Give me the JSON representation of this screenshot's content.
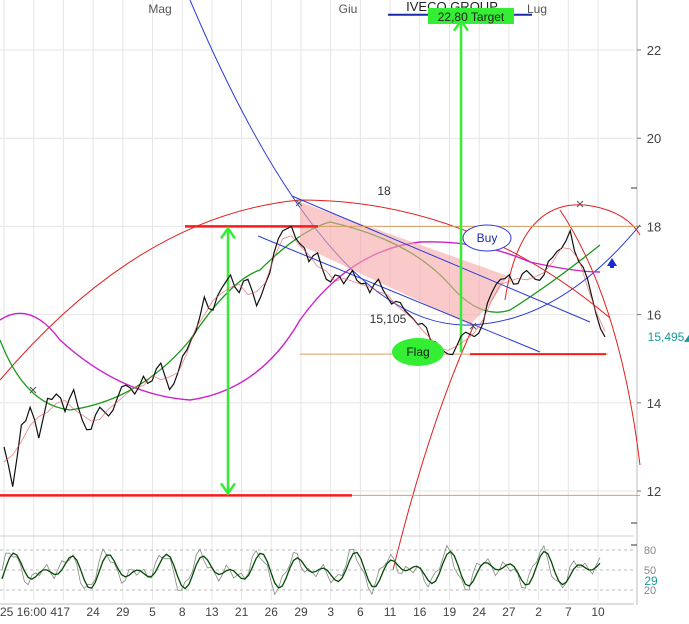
{
  "chart_data": {
    "type": "line",
    "title": "IVECO GROUP",
    "month_labels": [
      "Mag",
      "Giu",
      "Lug"
    ],
    "x_tick_labels": [
      "25 16:00",
      "4",
      "17",
      "24",
      "29",
      "5",
      "8",
      "13",
      "21",
      "26",
      "29",
      "3",
      "6",
      "11",
      "16",
      "19",
      "24",
      "27",
      "2",
      "7",
      "10"
    ],
    "y_tick_labels": [
      "22",
      "20",
      "18",
      "16",
      "14",
      "12"
    ],
    "ylim": [
      11.2,
      23.6
    ],
    "oscillator_tick_labels": [
      "80",
      "50",
      "20"
    ],
    "oscillator_last_value": "29",
    "last_price": "15,495",
    "annotations": {
      "target": "22,80 Target",
      "resistance": "18",
      "support": "15,105",
      "pattern": "Flag",
      "signal": "Buy"
    },
    "levels": {
      "target_price": 22.8,
      "resistance_price": 18.0,
      "flag_low": 15.105,
      "base_low": 11.9
    },
    "series": [
      {
        "values": [
          13.0,
          12.1,
          13.5,
          13.9,
          13.2,
          14.1,
          14.2,
          13.8,
          14.3,
          13.6,
          13.4,
          13.9,
          13.7,
          14.1,
          14.4,
          14.2,
          14.6,
          14.5,
          14.9,
          14.3,
          14.7,
          15.2,
          15.6,
          16.4,
          16.1,
          16.6,
          16.9,
          16.5,
          16.8,
          16.2,
          16.7,
          17.4,
          17.9,
          18.0,
          17.6,
          17.2,
          17.4,
          16.8,
          16.9,
          16.7,
          17.0,
          16.7,
          16.5,
          16.8,
          16.4,
          16.3,
          16.1,
          15.9,
          15.8,
          15.4,
          15.3,
          15.105,
          15.3,
          15.6,
          15.5,
          15.8,
          16.5,
          16.8,
          16.9,
          16.7,
          17.0,
          16.8,
          16.9,
          17.3,
          17.5,
          17.9,
          17.2,
          16.8,
          16.0,
          15.495
        ]
      }
    ]
  }
}
